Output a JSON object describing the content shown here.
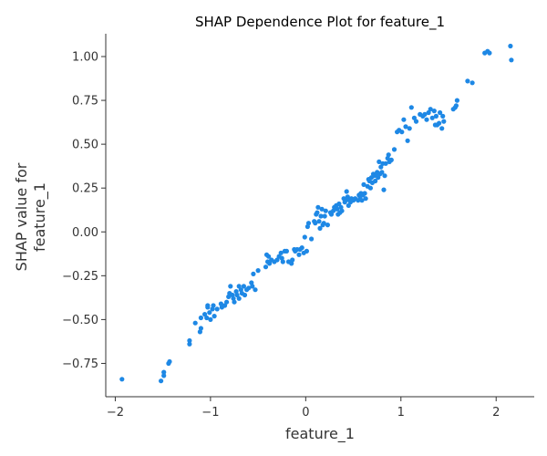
{
  "chart_data": {
    "type": "scatter",
    "title": "SHAP Dependence Plot for feature_1",
    "xlabel": "feature_1",
    "ylabel_lines": [
      "SHAP value for",
      "feature_1"
    ],
    "xlim": [
      -2.1,
      2.4
    ],
    "ylim": [
      -0.94,
      1.13
    ],
    "xticks": [
      -2,
      -1,
      0,
      1,
      2
    ],
    "xtick_labels": [
      "−2",
      "−1",
      "0",
      "1",
      "2"
    ],
    "yticks": [
      -0.75,
      -0.5,
      -0.25,
      0.0,
      0.25,
      0.5,
      0.75,
      1.0
    ],
    "ytick_labels": [
      "−0.75",
      "−0.50",
      "−0.25",
      "0.00",
      "0.25",
      "0.50",
      "0.75",
      "1.00"
    ],
    "grid": false,
    "point_color": "#1e88e5",
    "points": [
      [
        -1.93,
        -0.84
      ],
      [
        -1.52,
        -0.85
      ],
      [
        -1.49,
        -0.82
      ],
      [
        -1.49,
        -0.8
      ],
      [
        -1.44,
        -0.75
      ],
      [
        -1.43,
        -0.74
      ],
      [
        -1.22,
        -0.64
      ],
      [
        -1.22,
        -0.62
      ],
      [
        -1.16,
        -0.52
      ],
      [
        -1.11,
        -0.57
      ],
      [
        -1.1,
        -0.55
      ],
      [
        -1.1,
        -0.49
      ],
      [
        -1.06,
        -0.47
      ],
      [
        -1.04,
        -0.49
      ],
      [
        -1.03,
        -0.43
      ],
      [
        -1.03,
        -0.42
      ],
      [
        -1.01,
        -0.46
      ],
      [
        -1.0,
        -0.5
      ],
      [
        -0.98,
        -0.44
      ],
      [
        -0.97,
        -0.42
      ],
      [
        -0.96,
        -0.48
      ],
      [
        -0.93,
        -0.44
      ],
      [
        -0.89,
        -0.41
      ],
      [
        -0.88,
        -0.43
      ],
      [
        -0.85,
        -0.42
      ],
      [
        -0.83,
        -0.4
      ],
      [
        -0.81,
        -0.37
      ],
      [
        -0.8,
        -0.35
      ],
      [
        -0.79,
        -0.31
      ],
      [
        -0.77,
        -0.36
      ],
      [
        -0.76,
        -0.38
      ],
      [
        -0.75,
        -0.4
      ],
      [
        -0.73,
        -0.34
      ],
      [
        -0.72,
        -0.36
      ],
      [
        -0.7,
        -0.31
      ],
      [
        -0.7,
        -0.38
      ],
      [
        -0.68,
        -0.33
      ],
      [
        -0.67,
        -0.35
      ],
      [
        -0.65,
        -0.31
      ],
      [
        -0.64,
        -0.36
      ],
      [
        -0.62,
        -0.33
      ],
      [
        -0.6,
        -0.32
      ],
      [
        -0.57,
        -0.29
      ],
      [
        -0.56,
        -0.31
      ],
      [
        -0.55,
        -0.24
      ],
      [
        -0.53,
        -0.33
      ],
      [
        -0.5,
        -0.22
      ],
      [
        -0.42,
        -0.2
      ],
      [
        -0.41,
        -0.13
      ],
      [
        -0.4,
        -0.17
      ],
      [
        -0.39,
        -0.14
      ],
      [
        -0.38,
        -0.18
      ],
      [
        -0.36,
        -0.16
      ],
      [
        -0.33,
        -0.17
      ],
      [
        -0.3,
        -0.16
      ],
      [
        -0.28,
        -0.14
      ],
      [
        -0.26,
        -0.12
      ],
      [
        -0.25,
        -0.15
      ],
      [
        -0.24,
        -0.17
      ],
      [
        -0.22,
        -0.11
      ],
      [
        -0.2,
        -0.11
      ],
      [
        -0.18,
        -0.17
      ],
      [
        -0.15,
        -0.18
      ],
      [
        -0.14,
        -0.16
      ],
      [
        -0.12,
        -0.1
      ],
      [
        -0.11,
        -0.11
      ],
      [
        -0.09,
        -0.1
      ],
      [
        -0.07,
        -0.13
      ],
      [
        -0.06,
        -0.1
      ],
      [
        -0.04,
        -0.09
      ],
      [
        -0.02,
        -0.12
      ],
      [
        -0.01,
        -0.03
      ],
      [
        0.01,
        -0.11
      ],
      [
        0.02,
        0.03
      ],
      [
        0.03,
        0.05
      ],
      [
        0.06,
        -0.04
      ],
      [
        0.09,
        0.06
      ],
      [
        0.1,
        0.05
      ],
      [
        0.11,
        0.1
      ],
      [
        0.12,
        0.11
      ],
      [
        0.13,
        0.14
      ],
      [
        0.14,
        0.06
      ],
      [
        0.15,
        0.02
      ],
      [
        0.16,
        0.09
      ],
      [
        0.17,
        0.13
      ],
      [
        0.18,
        0.04
      ],
      [
        0.19,
        0.05
      ],
      [
        0.2,
        0.09
      ],
      [
        0.21,
        0.12
      ],
      [
        0.23,
        0.04
      ],
      [
        0.26,
        0.11
      ],
      [
        0.27,
        0.1
      ],
      [
        0.29,
        0.12
      ],
      [
        0.3,
        0.14
      ],
      [
        0.32,
        0.15
      ],
      [
        0.33,
        0.13
      ],
      [
        0.34,
        0.1
      ],
      [
        0.35,
        0.16
      ],
      [
        0.36,
        0.11
      ],
      [
        0.37,
        0.14
      ],
      [
        0.38,
        0.12
      ],
      [
        0.4,
        0.19
      ],
      [
        0.41,
        0.17
      ],
      [
        0.42,
        0.18
      ],
      [
        0.43,
        0.23
      ],
      [
        0.44,
        0.2
      ],
      [
        0.45,
        0.15
      ],
      [
        0.46,
        0.18
      ],
      [
        0.47,
        0.17
      ],
      [
        0.48,
        0.19
      ],
      [
        0.5,
        0.18
      ],
      [
        0.52,
        0.19
      ],
      [
        0.55,
        0.18
      ],
      [
        0.56,
        0.21
      ],
      [
        0.57,
        0.2
      ],
      [
        0.58,
        0.22
      ],
      [
        0.59,
        0.18
      ],
      [
        0.6,
        0.21
      ],
      [
        0.61,
        0.27
      ],
      [
        0.62,
        0.22
      ],
      [
        0.63,
        0.19
      ],
      [
        0.65,
        0.26
      ],
      [
        0.66,
        0.3
      ],
      [
        0.67,
        0.29
      ],
      [
        0.68,
        0.25
      ],
      [
        0.69,
        0.31
      ],
      [
        0.7,
        0.28
      ],
      [
        0.71,
        0.33
      ],
      [
        0.72,
        0.32
      ],
      [
        0.73,
        0.29
      ],
      [
        0.74,
        0.33
      ],
      [
        0.75,
        0.34
      ],
      [
        0.76,
        0.31
      ],
      [
        0.77,
        0.4
      ],
      [
        0.78,
        0.33
      ],
      [
        0.79,
        0.37
      ],
      [
        0.8,
        0.34
      ],
      [
        0.81,
        0.39
      ],
      [
        0.82,
        0.24
      ],
      [
        0.83,
        0.32
      ],
      [
        0.84,
        0.39
      ],
      [
        0.86,
        0.42
      ],
      [
        0.87,
        0.44
      ],
      [
        0.88,
        0.4
      ],
      [
        0.9,
        0.41
      ],
      [
        0.93,
        0.47
      ],
      [
        0.96,
        0.57
      ],
      [
        0.98,
        0.58
      ],
      [
        1.01,
        0.57
      ],
      [
        1.03,
        0.64
      ],
      [
        1.05,
        0.6
      ],
      [
        1.07,
        0.52
      ],
      [
        1.09,
        0.59
      ],
      [
        1.11,
        0.71
      ],
      [
        1.14,
        0.65
      ],
      [
        1.16,
        0.63
      ],
      [
        1.2,
        0.67
      ],
      [
        1.23,
        0.66
      ],
      [
        1.25,
        0.67
      ],
      [
        1.27,
        0.64
      ],
      [
        1.29,
        0.68
      ],
      [
        1.31,
        0.7
      ],
      [
        1.33,
        0.65
      ],
      [
        1.35,
        0.69
      ],
      [
        1.36,
        0.61
      ],
      [
        1.37,
        0.66
      ],
      [
        1.38,
        0.61
      ],
      [
        1.4,
        0.62
      ],
      [
        1.41,
        0.68
      ],
      [
        1.43,
        0.59
      ],
      [
        1.44,
        0.66
      ],
      [
        1.45,
        0.63
      ],
      [
        1.55,
        0.7
      ],
      [
        1.57,
        0.71
      ],
      [
        1.58,
        0.72
      ],
      [
        1.59,
        0.75
      ],
      [
        1.7,
        0.86
      ],
      [
        1.75,
        0.85
      ],
      [
        1.88,
        1.02
      ],
      [
        1.91,
        1.03
      ],
      [
        1.93,
        1.02
      ],
      [
        2.15,
        1.06
      ],
      [
        2.16,
        0.98
      ]
    ]
  }
}
